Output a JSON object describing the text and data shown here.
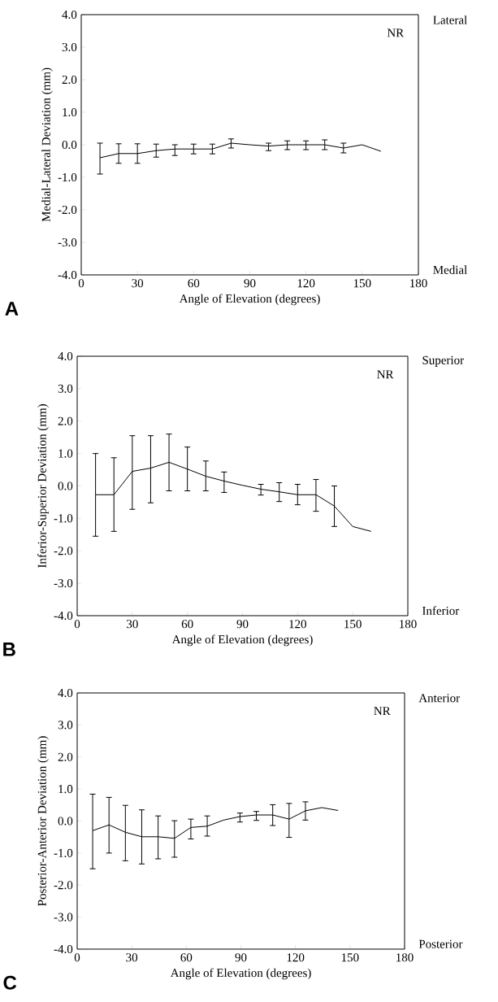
{
  "chart_data": [
    {
      "type": "line",
      "xlabel": "Angle of Elevation (degrees)",
      "ylabel": "Medial-Lateral Deviation (mm)",
      "annotations": [
        "NR",
        "Lateral",
        "Medial",
        "A"
      ],
      "x": [
        10,
        20,
        30,
        40,
        50,
        60,
        70,
        80,
        90,
        100,
        110,
        120,
        130,
        140,
        150,
        160
      ],
      "values": [
        -0.4,
        -0.27,
        -0.27,
        -0.18,
        -0.13,
        -0.13,
        -0.13,
        0.05,
        0.0,
        -0.04,
        0.0,
        0.0,
        0.0,
        -0.1,
        0.0,
        -0.2
      ],
      "errors": [
        [
          -0.9,
          0.05
        ],
        [
          -0.57,
          0.03
        ],
        [
          -0.57,
          0.03
        ],
        [
          -0.38,
          0.02
        ],
        [
          -0.33,
          0.0
        ],
        [
          -0.28,
          0.02
        ],
        [
          -0.28,
          0.02
        ],
        [
          -0.1,
          0.18
        ],
        null,
        [
          -0.18,
          0.05
        ],
        [
          -0.15,
          0.12
        ],
        [
          -0.15,
          0.12
        ],
        [
          -0.15,
          0.15
        ],
        [
          -0.25,
          0.05
        ],
        null,
        null
      ],
      "color": "#000000",
      "xlim": [
        0,
        180
      ],
      "xticks": [
        0,
        30,
        60,
        90,
        120,
        150,
        180
      ],
      "ylim": [
        -4,
        4
      ],
      "yticks": [
        {
          "value": -4,
          "label": "-4.0"
        },
        {
          "value": -3,
          "label": "-3.0"
        },
        {
          "value": -2,
          "label": "-2.0"
        },
        {
          "value": -1,
          "label": "-1.0"
        },
        {
          "value": 0,
          "label": "0.0"
        },
        {
          "value": 1,
          "label": "1.0"
        },
        {
          "value": 2,
          "label": "2.0"
        },
        {
          "value": 3,
          "label": "3.0"
        },
        {
          "value": 4,
          "label": "4.0"
        }
      ]
    },
    {
      "type": "line",
      "xlabel": "Angle of Elevation (degrees)",
      "ylabel": "Inferior-Superior Deviation (mm)",
      "annotations": [
        "NR",
        "Superior",
        "Inferior",
        "B"
      ],
      "x": [
        10,
        20,
        30,
        40,
        50,
        60,
        70,
        80,
        90,
        100,
        110,
        120,
        130,
        140,
        150,
        160
      ],
      "values": [
        -0.27,
        -0.27,
        0.45,
        0.55,
        0.73,
        0.52,
        0.3,
        0.15,
        0.02,
        -0.1,
        -0.18,
        -0.27,
        -0.27,
        -0.62,
        -1.25,
        -1.4
      ],
      "errors": [
        [
          -1.55,
          1.0
        ],
        [
          -1.4,
          0.87
        ],
        [
          -0.72,
          1.55
        ],
        [
          -0.52,
          1.55
        ],
        [
          -0.15,
          1.6
        ],
        [
          -0.15,
          1.2
        ],
        [
          -0.15,
          0.77
        ],
        [
          -0.2,
          0.43
        ],
        null,
        [
          -0.28,
          0.05
        ],
        [
          -0.48,
          0.1
        ],
        [
          -0.58,
          0.05
        ],
        [
          -0.78,
          0.2
        ],
        [
          -1.25,
          0.0
        ],
        null,
        null
      ],
      "color": "#000000",
      "xlim": [
        0,
        180
      ],
      "xticks": [
        0,
        30,
        60,
        90,
        120,
        150,
        180
      ],
      "ylim": [
        -4,
        4
      ],
      "yticks": [
        {
          "value": -4,
          "label": "-4.0"
        },
        {
          "value": -3,
          "label": "-3.0"
        },
        {
          "value": -2,
          "label": "-2.0"
        },
        {
          "value": -1,
          "label": "-1.0"
        },
        {
          "value": 0,
          "label": "0.0"
        },
        {
          "value": 1,
          "label": "1.0"
        },
        {
          "value": 2,
          "label": "2.0"
        },
        {
          "value": 3,
          "label": "3.0"
        },
        {
          "value": 4,
          "label": "4.0"
        }
      ]
    },
    {
      "type": "line",
      "xlabel": "Angle of Elevation (degrees)",
      "ylabel": "Posterior-Anterior Deviation (mm)",
      "annotations": [
        "NR",
        "Anterior",
        "Posterior",
        "C"
      ],
      "x": [
        8.5,
        17.5,
        26.5,
        35.5,
        44.5,
        53.5,
        62.5,
        71.5,
        80.5,
        89.5,
        98.5,
        107.5,
        116.5,
        125.5,
        134.5,
        143.5
      ],
      "values": [
        -0.3,
        -0.12,
        -0.35,
        -0.49,
        -0.49,
        -0.54,
        -0.2,
        -0.16,
        0.03,
        0.14,
        0.19,
        0.19,
        0.06,
        0.32,
        0.42,
        0.33
      ],
      "errors": [
        [
          -1.49,
          0.84
        ],
        [
          -1.0,
          0.74
        ],
        [
          -1.24,
          0.49
        ],
        [
          -1.34,
          0.35
        ],
        [
          -1.18,
          0.16
        ],
        [
          -1.13,
          0.01
        ],
        [
          -0.56,
          0.06
        ],
        [
          -0.47,
          0.16
        ],
        null,
        [
          -0.03,
          0.25
        ],
        [
          0.02,
          0.3
        ],
        [
          -0.14,
          0.51
        ],
        [
          -0.51,
          0.55
        ],
        [
          0.03,
          0.6
        ],
        null,
        null
      ],
      "color": "#000000",
      "xlim": [
        0,
        180
      ],
      "xticks": [
        0,
        30,
        60,
        90,
        120,
        150,
        180
      ],
      "ylim": [
        -4,
        4
      ],
      "yticks": [
        {
          "value": -4,
          "label": "-4.0"
        },
        {
          "value": -3,
          "label": "-3.0"
        },
        {
          "value": -2,
          "label": "-2.0"
        },
        {
          "value": -1,
          "label": "-1.0"
        },
        {
          "value": 0,
          "label": "0.0"
        },
        {
          "value": 1,
          "label": "1.0"
        },
        {
          "value": 2,
          "label": "2.0"
        },
        {
          "value": 3,
          "label": "3.0"
        },
        {
          "value": 4,
          "label": "4.0"
        }
      ]
    }
  ]
}
